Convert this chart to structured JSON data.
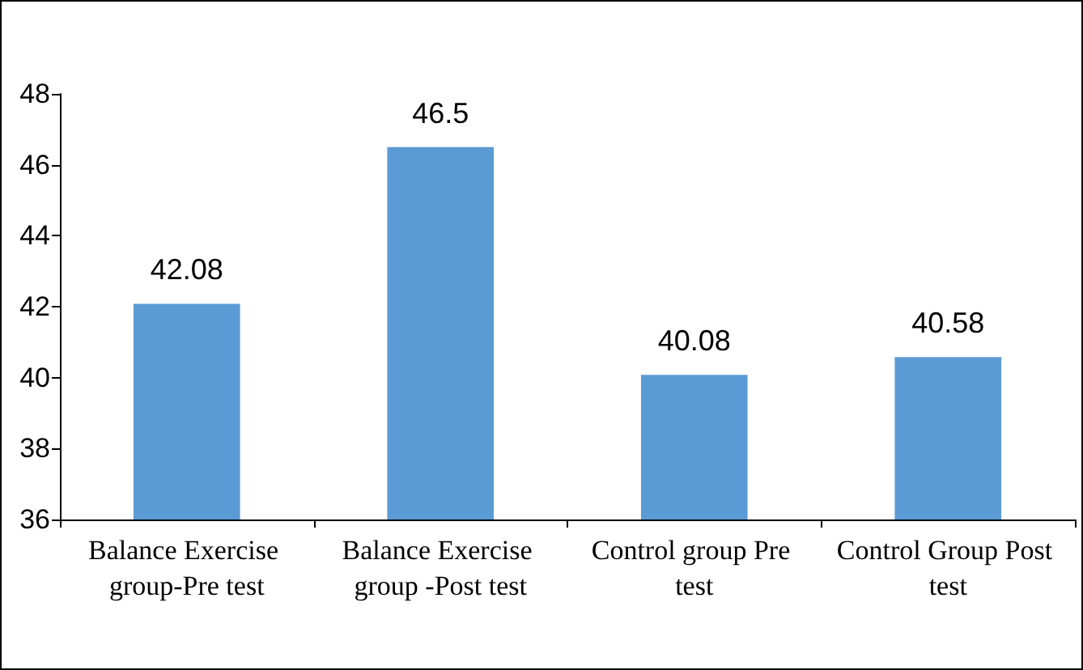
{
  "chart_data": {
    "type": "bar",
    "categories": [
      "Balance Exercise group-Pre test",
      "Balance Exercise group -Post test",
      "Control group Pre test",
      "Control Group Post test"
    ],
    "values": [
      42.08,
      46.5,
      40.08,
      40.58
    ],
    "color": "#5b9bd5",
    "ylim": [
      36,
      48
    ],
    "yticks": [
      36,
      38,
      40,
      42,
      44,
      46,
      48
    ],
    "grid": false,
    "data_labels": true
  }
}
